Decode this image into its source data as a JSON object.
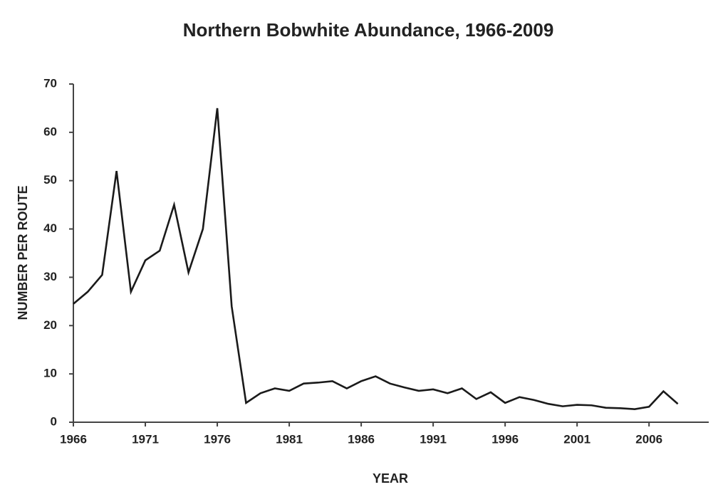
{
  "chart_data": {
    "type": "line",
    "title": "Northern Bobwhite Abundance, 1966-2009",
    "xlabel": "YEAR",
    "ylabel": "NUMBER PER ROUTE",
    "x": [
      1966,
      1967,
      1968,
      1969,
      1970,
      1971,
      1972,
      1973,
      1974,
      1975,
      1976,
      1977,
      1978,
      1979,
      1980,
      1981,
      1982,
      1983,
      1984,
      1985,
      1986,
      1987,
      1988,
      1989,
      1990,
      1991,
      1992,
      1993,
      1994,
      1995,
      1996,
      1997,
      1998,
      1999,
      2000,
      2001,
      2002,
      2003,
      2004,
      2005,
      2006,
      2007,
      2008
    ],
    "series": [
      {
        "color": "#1a1a1a",
        "values": [
          24.5,
          27,
          30.5,
          52,
          27,
          33.5,
          35.5,
          45,
          31,
          40,
          65,
          24,
          4,
          6,
          7,
          6.5,
          8,
          8.2,
          8.5,
          7,
          8.5,
          9.5,
          8,
          7.2,
          6.5,
          6.8,
          6,
          7,
          4.8,
          6.2,
          4,
          5.2,
          4.6,
          3.8,
          3.3,
          3.6,
          3.5,
          3,
          2.9,
          2.7,
          3.2,
          6.4,
          3.8
        ]
      }
    ],
    "xlim": [
      1966,
      2010
    ],
    "xticks": [
      1966,
      1971,
      1976,
      1981,
      1986,
      1991,
      1996,
      2001,
      2006
    ],
    "ylim": [
      0,
      70
    ],
    "yticks": [
      0,
      10,
      20,
      30,
      40,
      50,
      60,
      70
    ],
    "grid": false
  }
}
